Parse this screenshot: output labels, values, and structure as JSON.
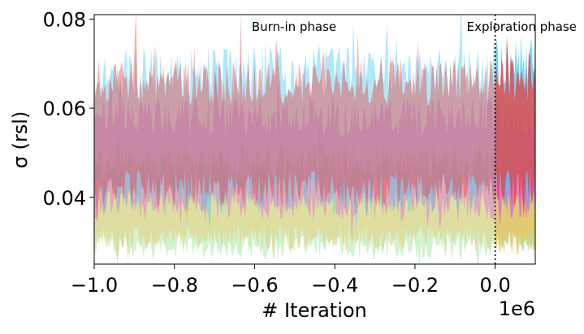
{
  "chart_data": {
    "type": "area",
    "xlabel": "# Iteration",
    "ylabel": "σ (rsl)",
    "x_multiplier": "1e6",
    "xlim": [
      -1.0,
      0.1
    ],
    "ylim": [
      0.025,
      0.081
    ],
    "xticks": [
      -1.0,
      -0.8,
      -0.6,
      -0.4,
      -0.2,
      0.0
    ],
    "xtick_labels": [
      "−1.0",
      "−0.8",
      "−0.6",
      "−0.4",
      "−0.2",
      "0.0"
    ],
    "yticks": [
      0.04,
      0.06,
      0.08
    ],
    "ytick_labels": [
      "0.04",
      "0.06",
      "0.08"
    ],
    "grid": false,
    "vline": {
      "x": 0.0,
      "style": "dotted",
      "color": "#000000"
    },
    "annotations": [
      {
        "text": "Burn-in phase",
        "x": -0.5,
        "y": 0.077
      },
      {
        "text": "Exploration phase",
        "x": 0.1,
        "y": 0.077
      }
    ],
    "series": [
      {
        "color": "#8fe38f",
        "burnin": {
          "low": 0.029,
          "high": 0.046
        },
        "explore": {
          "low": 0.03,
          "high": 0.044
        }
      },
      {
        "color": "#f0c060",
        "burnin": {
          "low": 0.031,
          "high": 0.048
        },
        "explore": {
          "low": 0.03,
          "high": 0.047
        }
      },
      {
        "color": "#e060e0",
        "burnin": {
          "low": 0.038,
          "high": 0.058
        },
        "explore": {
          "low": 0.038,
          "high": 0.057
        }
      },
      {
        "color": "#40c8f0",
        "burnin": {
          "low": 0.041,
          "high": 0.068
        },
        "explore": {
          "low": 0.042,
          "high": 0.07
        }
      },
      {
        "color": "#f03a3a",
        "burnin": {
          "low": 0.042,
          "high": 0.066
        },
        "explore": {
          "low": 0.042,
          "high": 0.067
        }
      }
    ]
  }
}
